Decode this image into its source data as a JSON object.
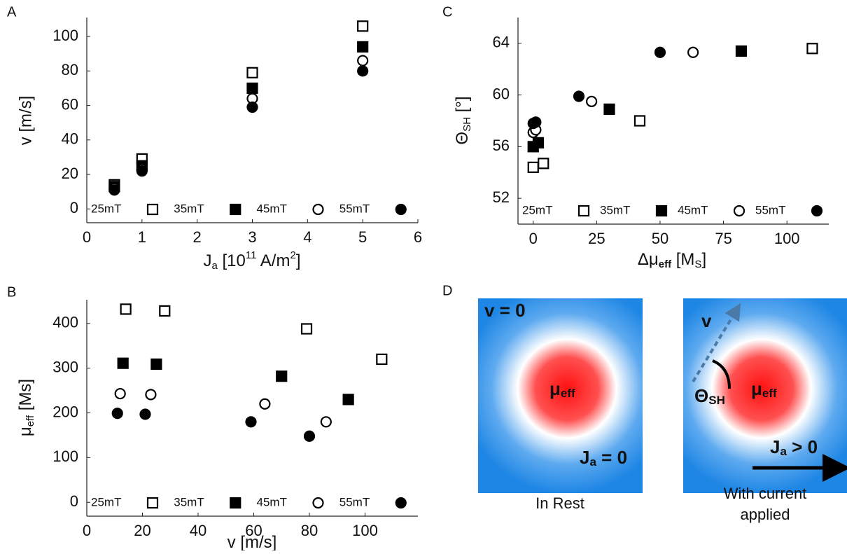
{
  "chart_data": [
    {
      "type": "scatter",
      "panel_label": "A",
      "ylabel": "v [m/s]",
      "xlabel": [
        "J",
        "a",
        " [10",
        "11",
        " A/m",
        "2",
        "]"
      ],
      "xlim": [
        0,
        6
      ],
      "xticks": [
        0,
        1,
        2,
        3,
        4,
        5,
        6
      ],
      "ylim": [
        -8,
        111
      ],
      "yticks": [
        0,
        20,
        40,
        60,
        80,
        100
      ],
      "series": [
        {
          "name": "25mT",
          "color": "#000000",
          "marker": "square",
          "filled": false,
          "x": [
            0.5,
            1,
            3,
            5
          ],
          "values": [
            14,
            29,
            79,
            106
          ]
        },
        {
          "name": "35mT",
          "color": "#000000",
          "marker": "square",
          "filled": true,
          "x": [
            0.5,
            1,
            3,
            5
          ],
          "values": [
            13,
            25,
            70,
            94
          ]
        },
        {
          "name": "45mT",
          "color": "#000000",
          "marker": "circle",
          "filled": false,
          "x": [
            0.5,
            1,
            3,
            5
          ],
          "values": [
            12,
            23,
            64,
            86
          ]
        },
        {
          "name": "55mT",
          "color": "#000000",
          "marker": "circle",
          "filled": true,
          "x": [
            0.5,
            1,
            3,
            5
          ],
          "values": [
            11,
            22,
            59,
            80
          ]
        }
      ]
    },
    {
      "type": "scatter",
      "panel_label": "B",
      "ylabel": [
        "μ",
        "eff",
        " [Ms]"
      ],
      "xlabel": [
        "v [m/s]"
      ],
      "xlim": [
        0,
        119
      ],
      "xticks": [
        0,
        20,
        40,
        60,
        80,
        100
      ],
      "ylim": [
        -31,
        453
      ],
      "yticks": [
        0,
        100,
        200,
        300,
        400
      ],
      "series": [
        {
          "name": "25mT",
          "color": "#000000",
          "marker": "square",
          "filled": false,
          "x": [
            14,
            28,
            79,
            106
          ],
          "values": [
            432,
            428,
            388,
            320
          ]
        },
        {
          "name": "35mT",
          "color": "#000000",
          "marker": "square",
          "filled": true,
          "x": [
            13,
            25,
            70,
            94
          ],
          "values": [
            311,
            309,
            282,
            230
          ]
        },
        {
          "name": "45mT",
          "color": "#000000",
          "marker": "circle",
          "filled": false,
          "x": [
            12,
            23,
            64,
            86
          ],
          "values": [
            243,
            241,
            220,
            180
          ]
        },
        {
          "name": "55mT",
          "color": "#000000",
          "marker": "circle",
          "filled": true,
          "x": [
            11,
            21,
            59,
            80
          ],
          "values": [
            199,
            197,
            180,
            148
          ]
        }
      ]
    },
    {
      "type": "scatter",
      "panel_label": "C",
      "ylabel": [
        "Θ",
        "SH",
        " [°]"
      ],
      "xlabel": [
        "Δμ",
        "eff",
        " [M",
        "S",
        "]"
      ],
      "xlim": [
        -6,
        116.5
      ],
      "xticks": [
        0,
        25,
        50,
        75,
        100
      ],
      "ylim": [
        50,
        66
      ],
      "yticks": [
        52,
        56,
        60,
        64
      ],
      "series": [
        {
          "name": "25mT",
          "color": "#000000",
          "marker": "square",
          "filled": false,
          "x": [
            0,
            4,
            42,
            110
          ],
          "values": [
            54.4,
            54.7,
            58.0,
            63.6
          ]
        },
        {
          "name": "35mT",
          "color": "#000000",
          "marker": "square",
          "filled": true,
          "x": [
            0,
            2,
            30,
            82
          ],
          "values": [
            56.0,
            56.3,
            58.9,
            63.4
          ]
        },
        {
          "name": "45mT",
          "color": "#000000",
          "marker": "circle",
          "filled": false,
          "x": [
            0,
            1,
            23,
            63
          ],
          "values": [
            57.1,
            57.3,
            59.5,
            63.3
          ]
        },
        {
          "name": "55mT",
          "color": "#000000",
          "marker": "circle",
          "filled": true,
          "x": [
            0,
            1,
            18,
            50
          ],
          "values": [
            57.8,
            57.9,
            59.9,
            63.3
          ]
        }
      ]
    }
  ],
  "diagram": {
    "panel_label": "D",
    "left": {
      "speed": "v = 0",
      "center": "μ",
      "center_sub": "eff",
      "current": "J",
      "current_sub": "a",
      "current_rest": " = 0",
      "caption": "In Rest"
    },
    "right": {
      "speed": "v",
      "angle": "Θ",
      "angle_sub": "SH",
      "center": "μ",
      "center_sub": "eff",
      "current": "J",
      "current_sub": "a",
      "current_rest": " > 0",
      "caption": [
        "With current",
        "applied"
      ]
    }
  }
}
